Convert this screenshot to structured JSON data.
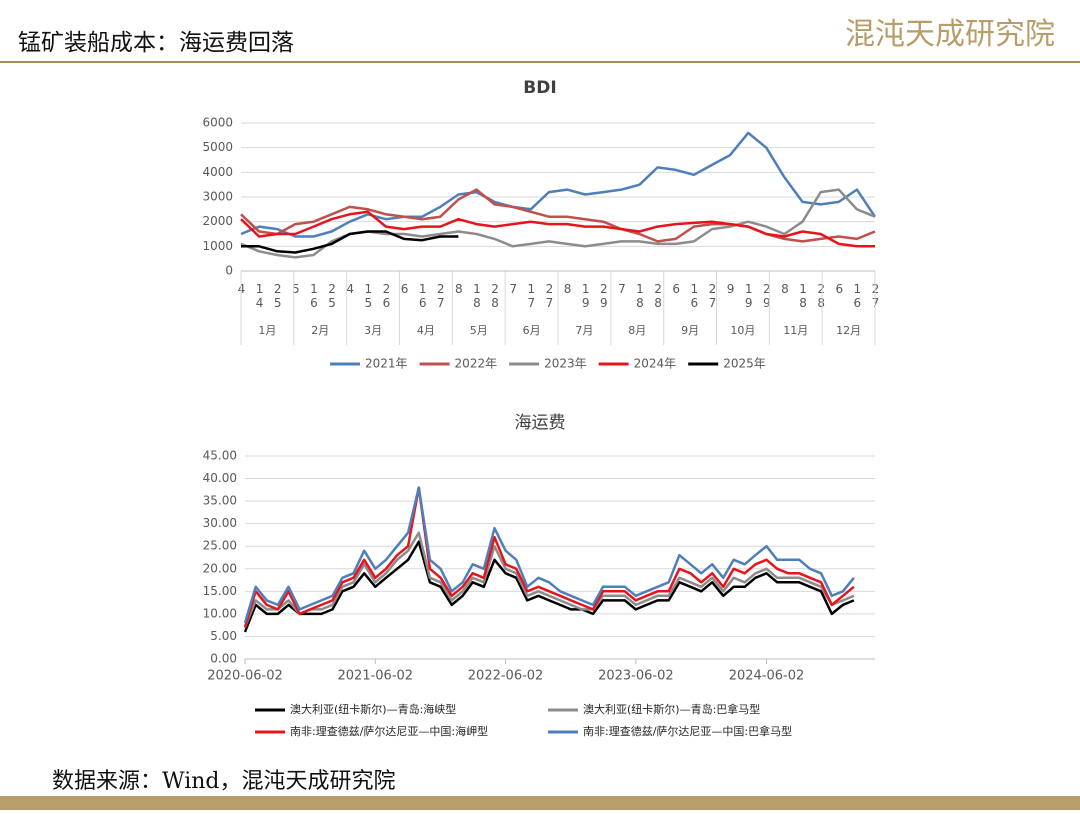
{
  "header": {
    "title": "锰矿装船成本：海运费回落",
    "logo": "混沌天成研究院"
  },
  "footer": {
    "source": "数据来源：Wind，混沌天成研究院"
  },
  "chart_data": [
    {
      "type": "line",
      "title": "BDI",
      "categories": [
        "4",
        "14",
        "25",
        "5",
        "16",
        "25",
        "4",
        "15",
        "26",
        "6",
        "16",
        "27",
        "8",
        "18",
        "28",
        "7",
        "17",
        "27",
        "8",
        "19",
        "29",
        "7",
        "18",
        "28",
        "6",
        "16",
        "27",
        "9",
        "19",
        "29",
        "8",
        "18",
        "28",
        "6",
        "16",
        "27"
      ],
      "months": [
        "1月",
        "2月",
        "3月",
        "4月",
        "5月",
        "6月",
        "7月",
        "8月",
        "9月",
        "10月",
        "11月",
        "12月"
      ],
      "ylim": [
        0,
        6000
      ],
      "yticks": [
        0,
        1000,
        2000,
        3000,
        4000,
        5000,
        6000
      ],
      "grid": true,
      "series": [
        {
          "name": "2021年",
          "color": "#4f7fba",
          "values": [
            1500,
            1800,
            1700,
            1400,
            1400,
            1600,
            2000,
            2300,
            2100,
            2200,
            2200,
            2600,
            3100,
            3200,
            2800,
            2600,
            2500,
            3200,
            3300,
            3100,
            3200,
            3300,
            3500,
            4200,
            4100,
            3900,
            4300,
            4700,
            5600,
            5000,
            3800,
            2800,
            2700,
            2800,
            3300,
            2200
          ]
        },
        {
          "name": "2022年",
          "color": "#c0504d",
          "values": [
            2300,
            1600,
            1500,
            1900,
            2000,
            2300,
            2600,
            2500,
            2300,
            2200,
            2100,
            2200,
            2900,
            3300,
            2700,
            2600,
            2400,
            2200,
            2200,
            2100,
            2000,
            1700,
            1500,
            1200,
            1300,
            1800,
            1900,
            1900,
            1800,
            1500,
            1300,
            1200,
            1300,
            1400,
            1300,
            1600
          ]
        },
        {
          "name": "2023年",
          "color": "#8c8c8c",
          "values": [
            1100,
            800,
            650,
            550,
            650,
            1200,
            1500,
            1600,
            1500,
            1500,
            1400,
            1500,
            1600,
            1500,
            1300,
            1000,
            1100,
            1200,
            1100,
            1000,
            1100,
            1200,
            1200,
            1100,
            1100,
            1200,
            1700,
            1800,
            2000,
            1800,
            1500,
            2000,
            3200,
            3300,
            2500,
            2200
          ]
        },
        {
          "name": "2024年",
          "color": "#e8141b",
          "values": [
            2100,
            1400,
            1500,
            1500,
            1800,
            2100,
            2300,
            2400,
            1800,
            1700,
            1800,
            1800,
            2100,
            1900,
            1800,
            1900,
            2000,
            1900,
            1900,
            1800,
            1800,
            1700,
            1600,
            1800,
            1900,
            1950,
            2000,
            1900,
            1800,
            1500,
            1400,
            1600,
            1500,
            1100,
            1000,
            1000
          ]
        },
        {
          "name": "2025年",
          "color": "#000000",
          "values": [
            1000,
            1000,
            800,
            750,
            900,
            1100,
            1500,
            1600,
            1600,
            1300,
            1250,
            1400,
            1400,
            null,
            null,
            null,
            null,
            null,
            null,
            null,
            null,
            null,
            null,
            null,
            null,
            null,
            null,
            null,
            null,
            null,
            null,
            null,
            null,
            null,
            null,
            null
          ]
        }
      ]
    },
    {
      "type": "line",
      "title": "海运费",
      "x": [
        "2020-06-02",
        "2020-07-02",
        "2020-08-02",
        "2020-09-02",
        "2020-10-02",
        "2020-11-02",
        "2020-12-02",
        "2021-01-02",
        "2021-02-02",
        "2021-03-02",
        "2021-04-02",
        "2021-05-02",
        "2021-06-02",
        "2021-07-02",
        "2021-08-02",
        "2021-09-02",
        "2021-10-02",
        "2021-11-02",
        "2021-12-02",
        "2022-01-02",
        "2022-02-02",
        "2022-03-02",
        "2022-04-02",
        "2022-05-02",
        "2022-06-02",
        "2022-07-02",
        "2022-08-02",
        "2022-09-02",
        "2022-10-02",
        "2022-11-02",
        "2022-12-02",
        "2023-01-02",
        "2023-02-02",
        "2023-03-02",
        "2023-04-02",
        "2023-05-02",
        "2023-06-02",
        "2023-07-02",
        "2023-08-02",
        "2023-09-02",
        "2023-10-02",
        "2023-11-02",
        "2023-12-02",
        "2024-01-02",
        "2024-02-02",
        "2024-03-02",
        "2024-04-02",
        "2024-05-02",
        "2024-06-02",
        "2024-07-02",
        "2024-08-02",
        "2024-09-02",
        "2024-10-02",
        "2024-11-02",
        "2024-12-02",
        "2025-01-02",
        "2025-02-02"
      ],
      "xlim": [
        "2020-06-02",
        "2025-04-02"
      ],
      "xticks": [
        "2020-06-02",
        "2021-06-02",
        "2022-06-02",
        "2023-06-02",
        "2024-06-02"
      ],
      "ylim": [
        0,
        45
      ],
      "yticks": [
        {
          "value": 0,
          "label": "0.00"
        },
        {
          "value": 5,
          "label": "5.00"
        },
        {
          "value": 10,
          "label": "10.00"
        },
        {
          "value": 15,
          "label": "15.00"
        },
        {
          "value": 20,
          "label": "20.00"
        },
        {
          "value": 25,
          "label": "25.00"
        },
        {
          "value": 30,
          "label": "30.00"
        },
        {
          "value": 35,
          "label": "35.00"
        },
        {
          "value": 40,
          "label": "40.00"
        },
        {
          "value": 45,
          "label": "45.00"
        }
      ],
      "grid": true,
      "series": [
        {
          "name": "澳大利亚(纽卡斯尔)—青岛:海峡型",
          "color": "#000000",
          "values": [
            6,
            12,
            10,
            10,
            12,
            10,
            10,
            10,
            11,
            15,
            16,
            19,
            16,
            18,
            20,
            22,
            26,
            17,
            16,
            12,
            14,
            17,
            16,
            22,
            19,
            18,
            13,
            14,
            13,
            12,
            11,
            11,
            10,
            13,
            13,
            13,
            11,
            12,
            13,
            13,
            17,
            16,
            15,
            17,
            14,
            16,
            16,
            18,
            19,
            17,
            17,
            17,
            16,
            15,
            10,
            12,
            13
          ]
        },
        {
          "name": "澳大利亚(纽卡斯尔)—青岛:巴拿马型",
          "color": "#8c8c8c",
          "values": [
            7,
            13,
            11,
            11,
            13,
            10,
            11,
            11,
            12,
            16,
            17,
            21,
            17,
            19,
            22,
            24,
            28,
            18,
            17,
            13,
            15,
            18,
            17,
            25,
            20,
            19,
            14,
            15,
            14,
            13,
            12,
            11,
            11,
            14,
            14,
            14,
            12,
            13,
            14,
            14,
            18,
            17,
            16,
            18,
            15,
            18,
            17,
            19,
            20,
            18,
            18,
            18,
            17,
            16,
            12,
            13,
            14
          ]
        },
        {
          "name": "南非:理查德兹/萨尔达尼亚—中国:海岬型",
          "color": "#e8141b",
          "values": [
            7,
            15,
            12,
            11,
            15,
            10,
            11,
            12,
            13,
            17,
            18,
            22,
            18,
            20,
            23,
            25,
            38,
            20,
            18,
            14,
            16,
            19,
            18,
            27,
            21,
            20,
            15,
            16,
            15,
            14,
            13,
            12,
            11,
            15,
            15,
            15,
            13,
            14,
            15,
            15,
            20,
            19,
            17,
            19,
            16,
            20,
            19,
            21,
            22,
            20,
            19,
            19,
            18,
            17,
            12,
            14,
            16
          ]
        },
        {
          "name": "南非:理查德兹/萨尔达尼亚—中国:巴拿马型",
          "color": "#4f7fba",
          "values": [
            8,
            16,
            13,
            12,
            16,
            11,
            12,
            13,
            14,
            18,
            19,
            24,
            20,
            22,
            25,
            28,
            38,
            22,
            20,
            15,
            17,
            21,
            20,
            29,
            24,
            22,
            16,
            18,
            17,
            15,
            14,
            13,
            12,
            16,
            16,
            16,
            14,
            15,
            16,
            17,
            23,
            21,
            19,
            21,
            18,
            22,
            21,
            23,
            25,
            22,
            22,
            22,
            20,
            19,
            14,
            15,
            18
          ]
        }
      ]
    }
  ]
}
